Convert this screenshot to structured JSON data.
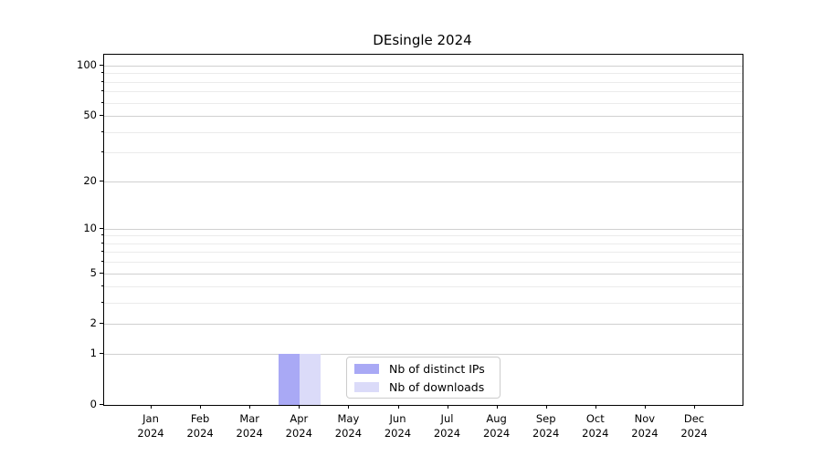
{
  "title": "DEsingle 2024",
  "chart_data": {
    "type": "bar",
    "title": "DEsingle 2024",
    "x_categories": [
      [
        "Jan",
        "2024"
      ],
      [
        "Feb",
        "2024"
      ],
      [
        "Mar",
        "2024"
      ],
      [
        "Apr",
        "2024"
      ],
      [
        "May",
        "2024"
      ],
      [
        "Jun",
        "2024"
      ],
      [
        "Jul",
        "2024"
      ],
      [
        "Aug",
        "2024"
      ],
      [
        "Sep",
        "2024"
      ],
      [
        "Oct",
        "2024"
      ],
      [
        "Nov",
        "2024"
      ],
      [
        "Dec",
        "2024"
      ]
    ],
    "series": [
      {
        "name": "Nb of distinct IPs",
        "color": "#a9a9f5",
        "values": [
          0,
          0,
          0,
          1,
          0,
          0,
          0,
          0,
          0,
          0,
          0,
          0
        ]
      },
      {
        "name": "Nb of downloads",
        "color": "#dbdbf9",
        "values": [
          0,
          0,
          0,
          1,
          0,
          0,
          0,
          0,
          0,
          0,
          0,
          0
        ]
      }
    ],
    "y_scale": "log10(1+x)",
    "ylim": [
      0,
      116
    ],
    "y_major_ticks": [
      0,
      1,
      2,
      5,
      10,
      20,
      50,
      100
    ],
    "y_gridlines": [
      1,
      2,
      3,
      4,
      5,
      6,
      7,
      8,
      9,
      10,
      20,
      30,
      40,
      50,
      60,
      70,
      80,
      90,
      100
    ],
    "legend": {
      "position": "lower center",
      "entries": [
        "Nb of distinct IPs",
        "Nb of downloads"
      ]
    },
    "xlabel": "",
    "ylabel": ""
  }
}
